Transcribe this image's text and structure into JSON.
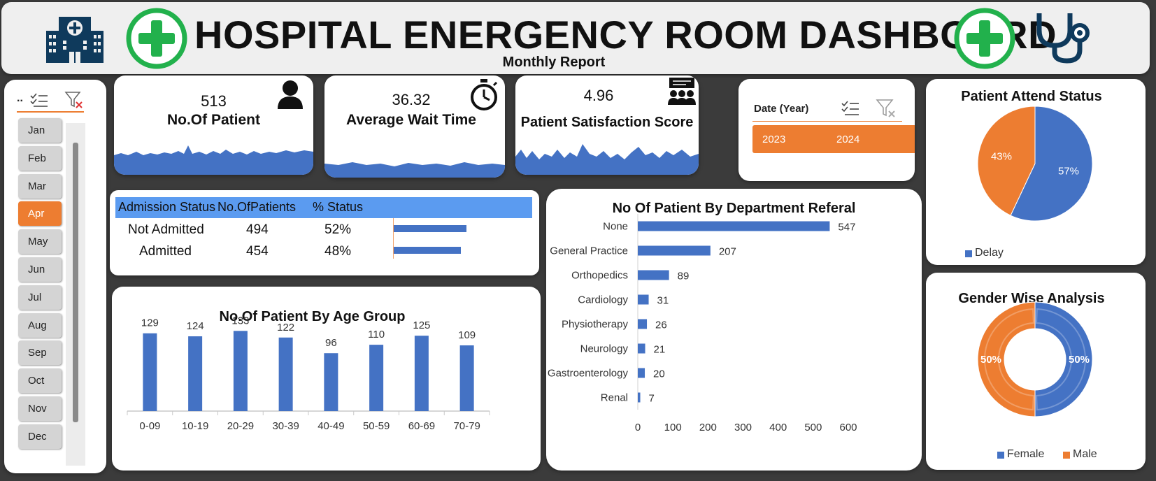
{
  "header": {
    "title": "HOSPITAL ENERGENCY ROOM DASHBOARD",
    "subtitle": "Monthly Report"
  },
  "month_slicer": {
    "header_dots": "..",
    "months": [
      "Jan",
      "Feb",
      "Mar",
      "Apr",
      "May",
      "Jun",
      "Jul",
      "Aug",
      "Sep",
      "Oct",
      "Nov",
      "Dec"
    ],
    "selected": "Apr"
  },
  "kpis": {
    "patients": {
      "value": "513",
      "label": "No.Of Patient"
    },
    "wait": {
      "value": "36.32",
      "label": "Average Wait Time"
    },
    "satisfaction": {
      "value": "4.96",
      "label": "Patient Satisfaction Score"
    }
  },
  "year_slicer": {
    "title": "Date (Year)",
    "years": [
      "2023",
      "2024"
    ]
  },
  "admission": {
    "headers": [
      "Admission Status",
      "No.OfPatients",
      "% Status"
    ],
    "rows": [
      {
        "status": "Not Admitted",
        "count": "494",
        "pct": "52%",
        "value": 0.52
      },
      {
        "status": "Admitted",
        "count": "454",
        "pct": "48%",
        "value": 0.48
      }
    ]
  },
  "colors": {
    "accent": "#ed7d31",
    "blue": "#4472c4",
    "green": "#22b14c",
    "navy": "#0f3a5c"
  },
  "chart_data": [
    {
      "type": "bar",
      "title": "No.Of Patient By Age Group",
      "categories": [
        "0-09",
        "10-19",
        "20-29",
        "30-39",
        "40-49",
        "50-59",
        "60-69",
        "70-79"
      ],
      "values": [
        129,
        124,
        133,
        122,
        96,
        110,
        125,
        109
      ]
    },
    {
      "type": "bar",
      "orientation": "horizontal",
      "title": "No Of Patient By Department Referal",
      "categories": [
        "None",
        "General Practice",
        "Orthopedics",
        "Cardiology",
        "Physiotherapy",
        "Neurology",
        "Gastroenterology",
        "Renal"
      ],
      "values": [
        547,
        207,
        89,
        31,
        26,
        21,
        20,
        7
      ],
      "xlim": [
        0,
        600
      ],
      "xticks": [
        "0",
        "100",
        "200",
        "300",
        "400",
        "500",
        "600"
      ]
    },
    {
      "type": "pie",
      "title": "Patient Attend Status",
      "slices": [
        {
          "label": "57%",
          "value": 57,
          "color": "#4472c4"
        },
        {
          "label": "43%",
          "value": 43,
          "color": "#ed7d31"
        }
      ],
      "legend": [
        "Delay"
      ],
      "legend_position": "bottom-left"
    },
    {
      "type": "pie",
      "subtype": "donut",
      "title": "Gender Wise Analysis",
      "slices": [
        {
          "name": "Female",
          "label": "50%",
          "value": 50,
          "color": "#4472c4"
        },
        {
          "name": "Male",
          "label": "50%",
          "value": 50,
          "color": "#ed7d31"
        }
      ],
      "legend": [
        "Female",
        "Male"
      ],
      "legend_position": "bottom"
    }
  ]
}
